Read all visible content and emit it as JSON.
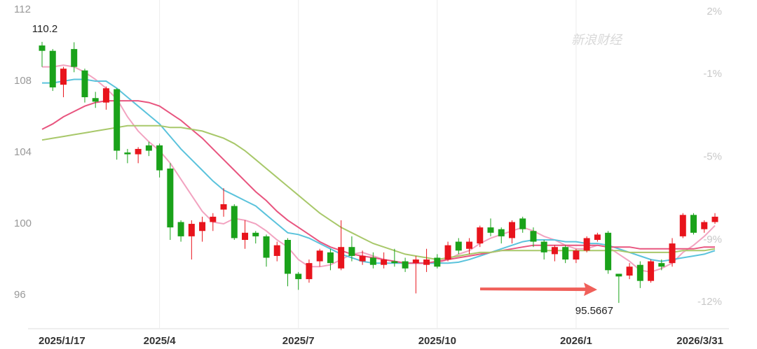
{
  "chart_data": {
    "type": "candlestick",
    "watermark": "新浪财经",
    "categories": [
      "2025/1/17",
      null,
      null,
      null,
      null,
      null,
      null,
      null,
      null,
      null,
      null,
      "2025/4",
      null,
      null,
      null,
      null,
      null,
      null,
      null,
      null,
      null,
      null,
      null,
      null,
      "2025/7",
      null,
      null,
      null,
      null,
      null,
      null,
      null,
      null,
      null,
      null,
      null,
      null,
      "2025/10",
      null,
      null,
      null,
      null,
      null,
      null,
      null,
      null,
      null,
      null,
      null,
      null,
      "2026/1",
      null,
      null,
      null,
      null,
      null,
      null,
      null,
      null,
      null,
      null,
      null,
      null,
      "2026/3/31"
    ],
    "open": [
      110.0,
      109.7,
      107.8,
      109.8,
      108.6,
      107.05,
      106.8,
      107.55,
      104.0,
      103.9,
      104.4,
      104.4,
      103.1,
      100.1,
      99.3,
      99.6,
      100.1,
      100.8,
      101.0,
      99.1,
      99.5,
      99.3,
      98.2,
      99.1,
      97.2,
      96.9,
      97.9,
      98.4,
      97.5,
      98.7,
      97.9,
      98.1,
      97.7,
      97.9,
      97.9,
      97.8,
      97.7,
      98.1,
      98.0,
      99.0,
      98.6,
      98.9,
      99.8,
      99.7,
      99.2,
      100.3,
      99.6,
      99.0,
      98.3,
      98.7,
      98.0,
      98.5,
      99.1,
      99.5,
      97.2,
      97.1,
      97.7,
      96.8,
      97.8,
      97.8,
      99.3,
      100.5,
      99.7,
      100.1
    ],
    "high": [
      110.2,
      109.8,
      108.8,
      110.1791,
      108.7,
      107.4,
      107.7,
      107.6,
      104.2,
      104.3,
      104.6,
      104.5,
      103.4,
      100.2,
      100.2,
      100.4,
      100.6,
      102.0,
      101.1,
      100.2,
      99.6,
      99.4,
      99.0,
      99.2,
      97.3,
      98.0,
      98.6,
      98.6,
      100.2,
      99.3,
      98.5,
      98.4,
      98.4,
      98.6,
      98.1,
      98.2,
      98.6,
      98.3,
      99.0,
      99.2,
      99.2,
      99.9,
      100.3,
      99.8,
      100.2,
      100.4,
      99.8,
      99.1,
      98.8,
      98.8,
      98.6,
      99.3,
      99.5,
      99.6,
      97.2,
      97.8,
      97.9,
      98.0,
      98.0,
      99.2,
      100.6,
      100.6,
      100.2,
      100.6
    ],
    "low": [
      108.8,
      107.45,
      107.1,
      108.5,
      106.8,
      106.5,
      106.4,
      103.6,
      103.4,
      103.4,
      103.8,
      102.6,
      99.1,
      99.0,
      98.0,
      99.0,
      99.6,
      100.4,
      99.1,
      98.6,
      98.9,
      97.6,
      97.9,
      96.5,
      96.3,
      96.7,
      97.6,
      97.4,
      97.4,
      97.9,
      97.7,
      97.5,
      97.5,
      97.6,
      97.3,
      96.1,
      97.3,
      97.5,
      97.9,
      98.3,
      98.3,
      98.7,
      99.3,
      98.9,
      98.9,
      99.5,
      98.7,
      98.0,
      97.9,
      97.8,
      97.8,
      98.4,
      99.0,
      97.2,
      95.5667,
      96.9,
      96.4,
      96.7,
      97.4,
      97.6,
      99.2,
      99.4,
      99.5,
      100.0
    ],
    "close": [
      109.7,
      107.65,
      108.7,
      108.8,
      107.1,
      106.85,
      107.6,
      104.1,
      103.9,
      104.2,
      104.1,
      103.0,
      99.8,
      99.3,
      100.0,
      100.1,
      100.4,
      101.1,
      99.2,
      99.5,
      99.3,
      98.1,
      98.8,
      97.2,
      96.9,
      97.8,
      98.5,
      97.8,
      98.7,
      98.2,
      98.2,
      97.7,
      98.0,
      97.8,
      97.5,
      98.0,
      98.0,
      97.6,
      98.8,
      98.5,
      99.0,
      99.8,
      99.5,
      99.3,
      100.1,
      99.7,
      99.0,
      98.4,
      98.7,
      98.0,
      98.5,
      99.2,
      99.4,
      97.4,
      97.05,
      97.6,
      96.8,
      97.9,
      97.6,
      98.9,
      100.5,
      99.5,
      100.1,
      100.4
    ],
    "up_color": "#e8141c",
    "down_color": "#1aa21a",
    "series": [
      {
        "color": "#f2a3c0",
        "values": [
          108.8,
          108.8,
          108.9,
          108.8,
          108.5,
          108.1,
          107.6,
          107.0,
          106.0,
          105.2,
          104.6,
          104.1,
          103.4,
          102.5,
          101.6,
          100.7,
          100.1,
          100.0,
          100.3,
          100.2,
          100.0,
          99.6,
          99.1,
          98.7,
          98.0,
          97.6,
          97.6,
          97.7,
          98.0,
          98.3,
          98.4,
          98.2,
          98.0,
          97.9,
          97.8,
          97.8,
          97.8,
          97.8,
          98.0,
          98.3,
          98.5,
          98.9,
          99.2,
          99.4,
          99.6,
          99.8,
          99.6,
          99.3,
          99.1,
          98.8,
          98.6,
          98.6,
          98.8,
          98.7,
          98.3,
          97.9,
          97.4,
          97.3,
          97.5,
          97.8,
          98.4,
          98.8,
          99.3,
          99.9
        ]
      },
      {
        "color": "#5bc3dc",
        "values": [
          107.9,
          107.9,
          108.0,
          108.1,
          108.1,
          108.0,
          108.0,
          107.6,
          107.1,
          106.6,
          106.1,
          105.6,
          104.9,
          104.2,
          103.6,
          103.0,
          102.4,
          101.9,
          101.6,
          101.3,
          101.0,
          100.5,
          100.0,
          99.5,
          99.4,
          99.2,
          98.9,
          98.6,
          98.3,
          98.1,
          97.9,
          97.8,
          97.8,
          97.8,
          97.8,
          97.8,
          97.8,
          97.8,
          97.8,
          97.85,
          98.0,
          98.2,
          98.4,
          98.6,
          98.8,
          99.0,
          99.1,
          99.1,
          99.1,
          99.0,
          99.0,
          98.9,
          98.9,
          98.8,
          98.6,
          98.4,
          98.2,
          98.0,
          97.9,
          98.0,
          98.1,
          98.2,
          98.3,
          98.5
        ]
      },
      {
        "color": "#e8557f",
        "values": [
          105.3,
          105.6,
          106.0,
          106.3,
          106.6,
          106.8,
          106.9,
          106.9,
          106.9,
          106.9,
          106.8,
          106.6,
          106.2,
          105.8,
          105.3,
          104.8,
          104.2,
          103.6,
          103.0,
          102.4,
          101.8,
          101.3,
          100.7,
          100.2,
          99.8,
          99.4,
          99.0,
          98.7,
          98.5,
          98.3,
          98.2,
          98.1,
          98.0,
          97.9,
          97.8,
          97.8,
          97.8,
          97.9,
          98.0,
          98.1,
          98.2,
          98.3,
          98.4,
          98.5,
          98.6,
          98.7,
          98.8,
          98.8,
          98.8,
          98.8,
          98.8,
          98.8,
          98.8,
          98.7,
          98.7,
          98.7,
          98.6,
          98.6,
          98.6,
          98.6,
          98.6,
          98.6,
          98.7,
          98.7
        ]
      },
      {
        "color": "#a8c86a",
        "values": [
          104.7,
          104.8,
          104.9,
          105.0,
          105.1,
          105.2,
          105.3,
          105.4,
          105.5,
          105.5,
          105.5,
          105.5,
          105.4,
          105.4,
          105.3,
          105.2,
          105.0,
          104.8,
          104.5,
          104.1,
          103.6,
          103.1,
          102.6,
          102.1,
          101.6,
          101.1,
          100.6,
          100.2,
          99.8,
          99.5,
          99.2,
          98.9,
          98.7,
          98.5,
          98.3,
          98.2,
          98.1,
          98.0,
          98.1,
          98.2,
          98.3,
          98.4,
          98.4,
          98.5,
          98.5,
          98.5,
          98.5,
          98.5,
          98.5,
          98.5,
          98.5,
          98.5,
          98.5,
          98.5,
          98.5,
          98.4,
          98.4,
          98.4,
          98.4,
          98.4,
          98.5,
          98.5,
          98.5,
          98.6
        ]
      }
    ],
    "ylim": [
      94.12,
      112.55
    ],
    "yticks": [
      96,
      100,
      104,
      108,
      112
    ],
    "y2lim": [
      -13.28,
      2.57
    ],
    "y2ticks": [
      {
        "value": 2,
        "label": "2%"
      },
      {
        "value": -1,
        "label": "-1%"
      },
      {
        "value": -5,
        "label": "-5%"
      },
      {
        "value": -9,
        "label": "-9%"
      },
      {
        "value": -12,
        "label": "-12%"
      }
    ],
    "arrow_color": "#f0605a"
  }
}
